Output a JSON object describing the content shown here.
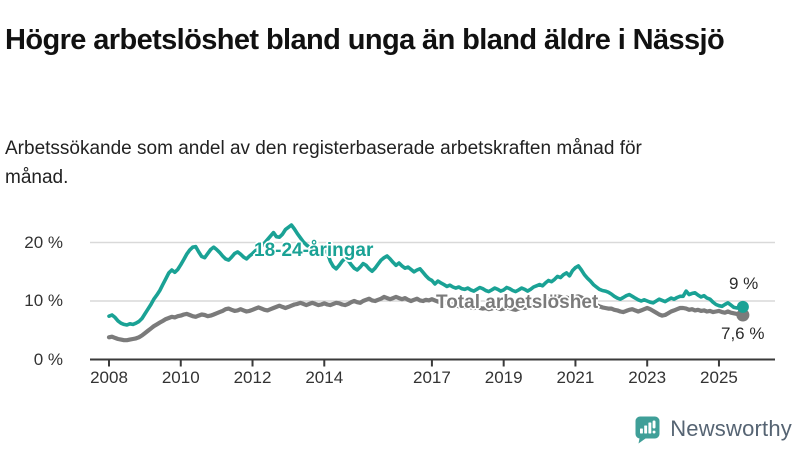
{
  "header": {
    "title": "Högre arbetslöshet bland unga än bland äldre i Nässjö",
    "subtitle": "Arbetssökande som andel av den registerbaserade arbetskraften månad för månad."
  },
  "chart_data": {
    "type": "line",
    "title": "Högre arbetslöshet bland unga än bland äldre i Nässjö",
    "subtitle": "Arbetssökande som andel av den registerbaserade arbetskraften månad för månad.",
    "unit": "%",
    "x_unit": "month",
    "x_start": "2008-01",
    "x_end": "2025-09",
    "x_tick_years": [
      2008,
      2010,
      2012,
      2014,
      2017,
      2019,
      2021,
      2023,
      2025
    ],
    "y_ticks": [
      {
        "label": "0 %",
        "value": 0
      },
      {
        "label": "10 %",
        "value": 10
      },
      {
        "label": "20 %",
        "value": 20
      }
    ],
    "ylim": [
      0,
      24
    ],
    "grid": "horizontal",
    "legend_position": "inline-labels",
    "series": [
      {
        "name": "18-24-åringar",
        "color": "#1aa295",
        "end_label": "9 %",
        "end_value": 9.0,
        "values": [
          7.4,
          7.6,
          7.2,
          6.6,
          6.2,
          6.0,
          5.9,
          6.1,
          6.0,
          6.2,
          6.5,
          7.0,
          7.8,
          8.6,
          9.4,
          10.3,
          11.0,
          11.8,
          12.8,
          13.8,
          14.8,
          15.3,
          14.9,
          15.4,
          16.2,
          17.1,
          18.0,
          18.7,
          19.2,
          19.3,
          18.4,
          17.6,
          17.4,
          18.1,
          18.8,
          19.2,
          18.8,
          18.3,
          17.7,
          17.2,
          17.0,
          17.5,
          18.1,
          18.4,
          18.0,
          17.5,
          17.2,
          17.7,
          18.1,
          18.6,
          19.0,
          19.4,
          19.9,
          20.5,
          21.1,
          21.7,
          21.0,
          20.9,
          21.4,
          22.2,
          22.6,
          23.0,
          22.3,
          21.5,
          20.8,
          20.1,
          19.6,
          19.2,
          18.9,
          19.3,
          19.0,
          18.6,
          18.9,
          18.3,
          16.8,
          15.9,
          15.5,
          16.1,
          16.8,
          17.3,
          16.9,
          16.2,
          15.6,
          15.3,
          15.8,
          16.4,
          16.1,
          15.5,
          15.1,
          15.6,
          16.3,
          17.0,
          17.4,
          17.7,
          17.2,
          16.6,
          16.1,
          16.5,
          16.0,
          15.6,
          15.8,
          15.4,
          15.0,
          15.3,
          15.5,
          14.9,
          14.3,
          13.8,
          13.5,
          12.9,
          13.4,
          13.1,
          12.8,
          12.5,
          12.7,
          12.4,
          12.2,
          12.4,
          12.1,
          12.0,
          12.2,
          11.9,
          11.7,
          12.0,
          12.3,
          12.1,
          11.8,
          11.6,
          11.9,
          12.2,
          12.0,
          11.7,
          11.9,
          12.3,
          12.1,
          11.8,
          11.6,
          11.9,
          12.2,
          12.0,
          11.7,
          12.0,
          12.4,
          12.6,
          12.8,
          12.6,
          13.1,
          13.5,
          13.3,
          13.7,
          14.2,
          14.0,
          14.5,
          14.8,
          14.3,
          15.2,
          15.7,
          16.0,
          15.3,
          14.5,
          13.9,
          13.4,
          12.8,
          12.4,
          12.0,
          11.8,
          11.7,
          11.5,
          11.2,
          10.8,
          10.5,
          10.3,
          10.6,
          10.9,
          11.1,
          10.8,
          10.5,
          10.2,
          10.0,
          10.2,
          10.0,
          9.8,
          9.7,
          10.0,
          10.3,
          10.1,
          9.9,
          10.2,
          10.5,
          10.3,
          10.6,
          10.8,
          10.8,
          11.7,
          11.1,
          11.3,
          11.4,
          11.0,
          10.7,
          10.9,
          10.5,
          10.3,
          9.8,
          9.4,
          9.2,
          9.1,
          9.4,
          9.7,
          9.3,
          8.9,
          8.8,
          9.1,
          9.0
        ]
      },
      {
        "name": "Total arbetslöshet",
        "color": "#7b7b7b",
        "end_label": "7,6 %",
        "end_value": 7.6,
        "values": [
          3.8,
          3.9,
          3.7,
          3.5,
          3.4,
          3.3,
          3.3,
          3.4,
          3.5,
          3.6,
          3.8,
          4.1,
          4.5,
          4.9,
          5.3,
          5.7,
          6.0,
          6.3,
          6.6,
          6.9,
          7.1,
          7.3,
          7.2,
          7.4,
          7.5,
          7.7,
          7.8,
          7.6,
          7.4,
          7.3,
          7.5,
          7.7,
          7.6,
          7.4,
          7.5,
          7.7,
          7.9,
          8.1,
          8.3,
          8.6,
          8.7,
          8.5,
          8.3,
          8.4,
          8.6,
          8.4,
          8.2,
          8.3,
          8.5,
          8.7,
          8.9,
          8.7,
          8.5,
          8.4,
          8.6,
          8.8,
          9.0,
          9.2,
          9.0,
          8.8,
          9.0,
          9.2,
          9.4,
          9.5,
          9.7,
          9.5,
          9.3,
          9.5,
          9.7,
          9.5,
          9.3,
          9.4,
          9.6,
          9.4,
          9.3,
          9.5,
          9.7,
          9.6,
          9.4,
          9.3,
          9.5,
          9.8,
          10.0,
          9.8,
          9.7,
          10.0,
          10.2,
          10.4,
          10.1,
          10.0,
          10.2,
          10.4,
          10.7,
          10.5,
          10.3,
          10.5,
          10.7,
          10.5,
          10.3,
          10.5,
          10.2,
          10.0,
          10.2,
          10.4,
          10.1,
          10.0,
          10.2,
          10.1,
          10.3,
          10.1,
          9.9,
          9.7,
          9.8,
          9.6,
          9.4,
          9.5,
          9.3,
          9.1,
          9.2,
          9.0,
          9.1,
          8.9,
          8.8,
          9.0,
          8.8,
          8.7,
          8.8,
          8.6,
          8.7,
          8.9,
          8.8,
          8.6,
          8.7,
          8.9,
          8.8,
          8.6,
          8.5,
          8.7,
          8.9,
          8.8,
          9.0,
          9.2,
          9.1,
          9.3,
          9.5,
          9.4,
          9.8,
          10.2,
          10.4,
          10.6,
          10.8,
          10.7,
          10.5,
          10.6,
          10.4,
          10.5,
          10.7,
          10.8,
          10.6,
          10.3,
          10.0,
          9.8,
          9.5,
          9.3,
          9.1,
          8.9,
          8.8,
          8.7,
          8.7,
          8.5,
          8.4,
          8.2,
          8.1,
          8.3,
          8.5,
          8.6,
          8.4,
          8.2,
          8.4,
          8.6,
          8.8,
          8.6,
          8.3,
          8.0,
          7.7,
          7.5,
          7.6,
          7.9,
          8.2,
          8.4,
          8.6,
          8.8,
          8.8,
          8.7,
          8.5,
          8.6,
          8.4,
          8.5,
          8.3,
          8.4,
          8.2,
          8.3,
          8.1,
          8.2,
          8.3,
          8.1,
          8.0,
          8.2,
          8.0,
          7.9,
          7.8,
          7.7,
          7.6
        ]
      }
    ],
    "colors": {
      "youth_line": "#1aa295",
      "total_line": "#7b7b7b",
      "grid": "#d9d9d9",
      "axis": "#3a3a3a"
    }
  },
  "logo": {
    "text": "Newsworthy",
    "icon_color": "#3f9f98"
  }
}
